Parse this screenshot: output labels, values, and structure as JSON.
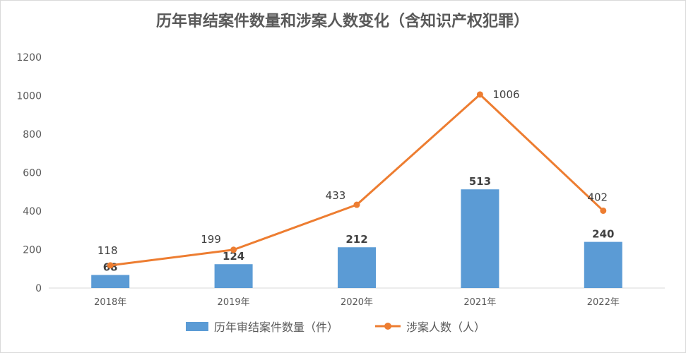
{
  "chart_data": {
    "type": "bar",
    "title": "历年审结案件数量和涉案人数变化（含知识产权犯罪）",
    "categories": [
      "2018年",
      "2019年",
      "2020年",
      "2021年",
      "2022年"
    ],
    "ylim": [
      0,
      1200
    ],
    "yticks": [
      0,
      200,
      400,
      600,
      800,
      1000,
      1200
    ],
    "grid": false,
    "legend_position": "bottom",
    "series": [
      {
        "name": "历年审结案件数量（件）",
        "type": "bar",
        "color": "#5b9bd5",
        "values": [
          68,
          124,
          212,
          513,
          240
        ]
      },
      {
        "name": "涉案人数（人）",
        "type": "line",
        "color": "#ed7d31",
        "values": [
          118,
          199,
          433,
          1006,
          402
        ]
      }
    ]
  }
}
